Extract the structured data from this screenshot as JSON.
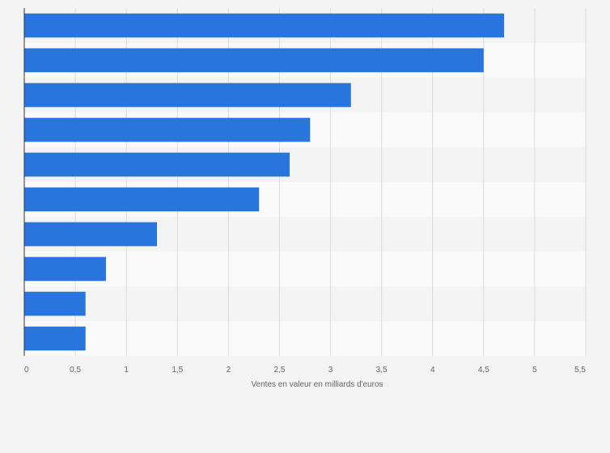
{
  "chart_data": {
    "type": "bar",
    "orientation": "horizontal",
    "categories": [
      "",
      "",
      "",
      "",
      "",
      "",
      "",
      "",
      "",
      ""
    ],
    "values": [
      4.7,
      4.5,
      3.2,
      2.8,
      2.6,
      2.3,
      1.3,
      0.8,
      0.6,
      0.6
    ],
    "xlabel": "Ventes en valeur en milliards d'euros",
    "ylabel": "",
    "xlim": [
      0,
      5.5
    ],
    "xticks": [
      0,
      0.5,
      1,
      1.5,
      2,
      2.5,
      3,
      3.5,
      4,
      4.5,
      5,
      5.5
    ],
    "xtick_labels": [
      "0",
      "0,5",
      "1",
      "1,5",
      "2",
      "2,5",
      "3",
      "3,5",
      "4",
      "4,5",
      "5",
      "5,5"
    ],
    "grid": true,
    "legend": "none",
    "bar_color": "#2876dd",
    "band_colors": [
      "#f4f4f4",
      "#fafafa"
    ],
    "gridline_color": "#dcdcdc",
    "axis_color": "#333333"
  }
}
